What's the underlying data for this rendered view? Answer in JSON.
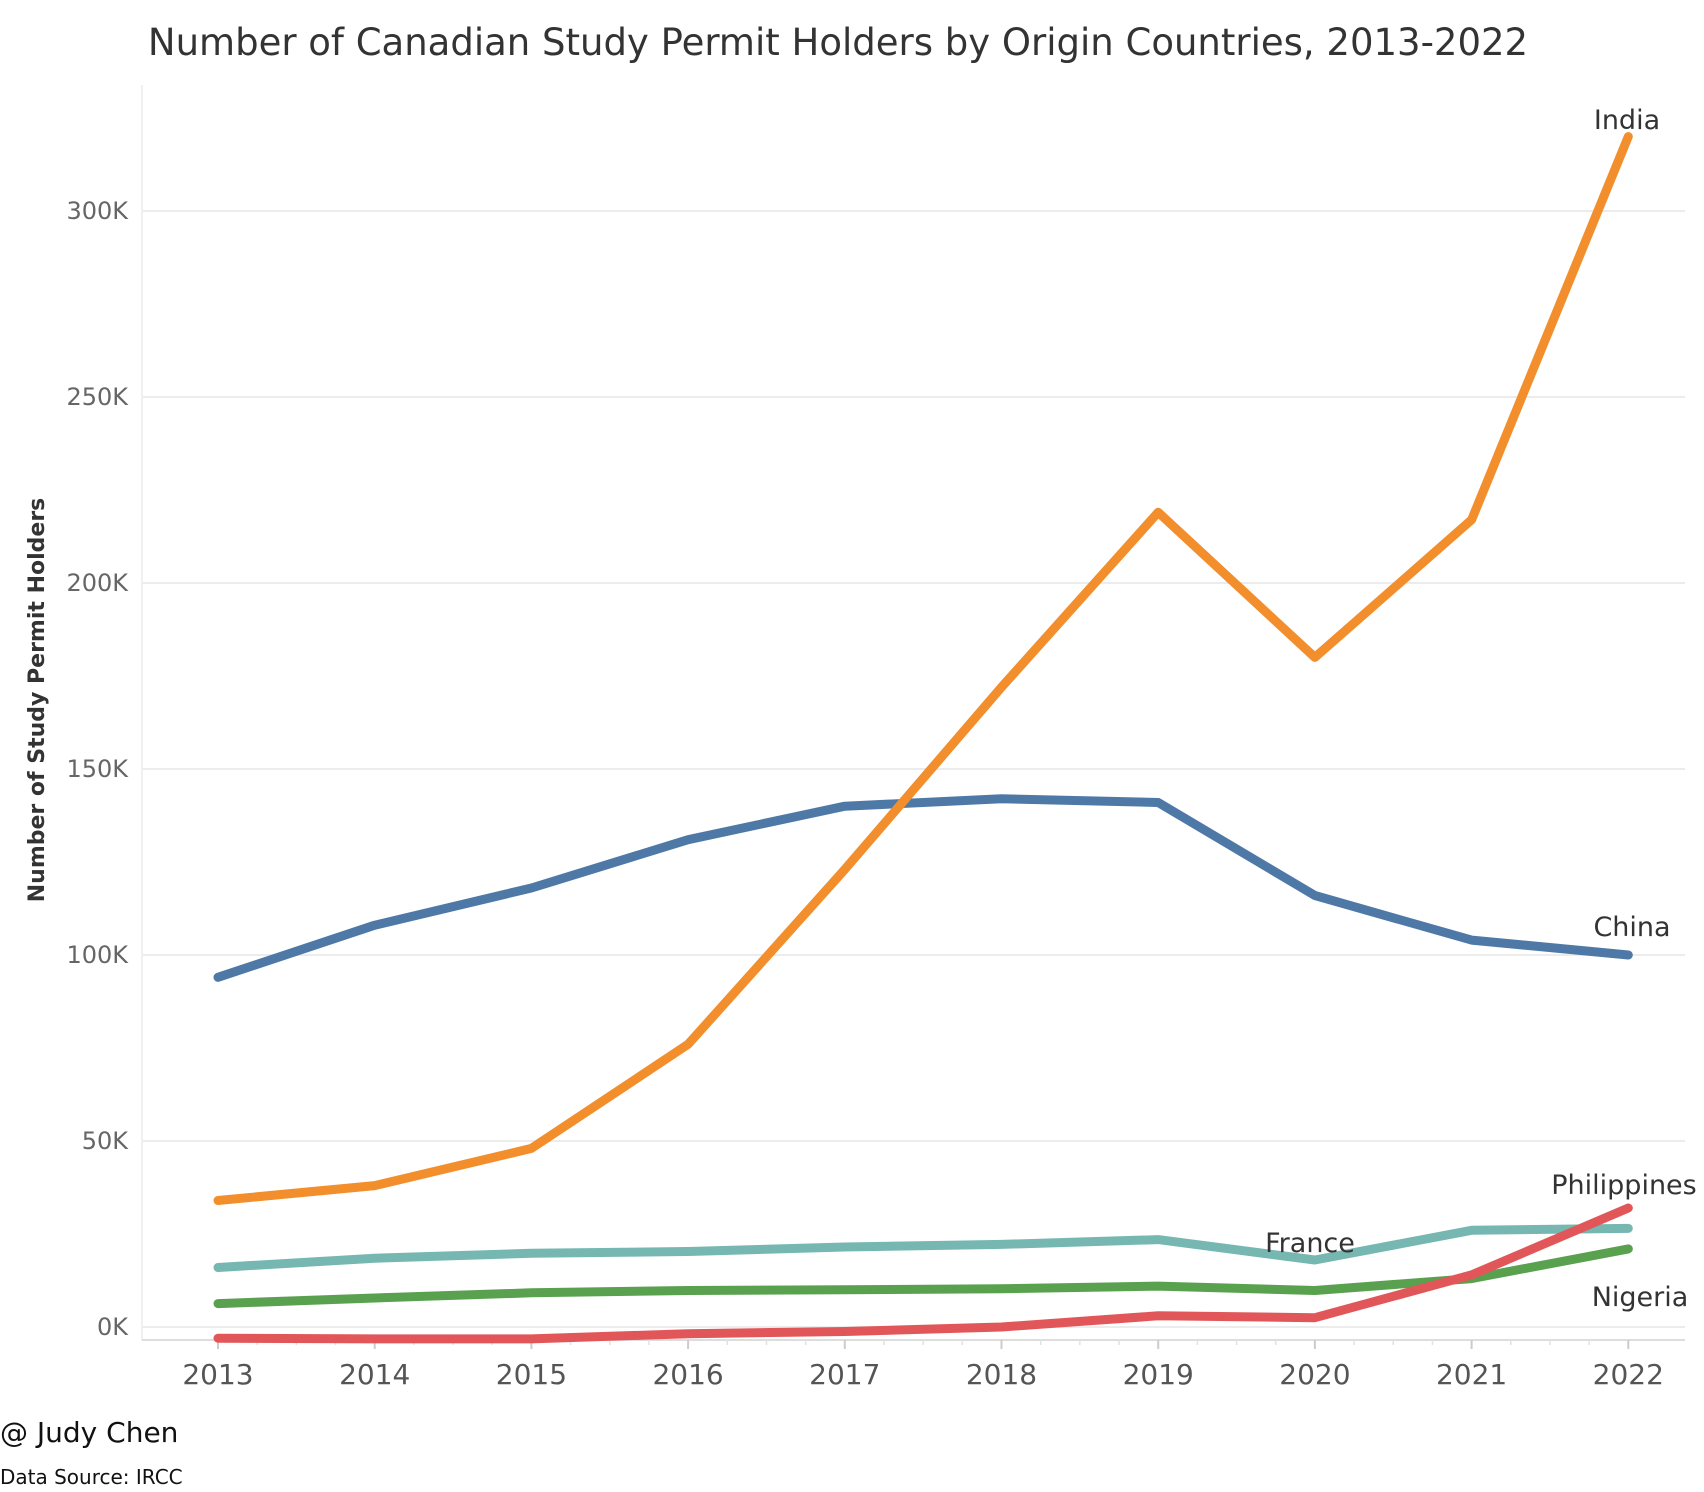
{
  "chart_data": {
    "type": "line",
    "title": "Number of Canadian Study Permit Holders by Origin Countries, 2013-2022",
    "xlabel": "",
    "ylabel": "Number of Study Permit Holders",
    "ylim": [
      0,
      330000
    ],
    "y_ticks": [
      0,
      50000,
      100000,
      150000,
      200000,
      250000,
      300000
    ],
    "y_tick_labels": [
      "0K",
      "50K",
      "100K",
      "150K",
      "200K",
      "250K",
      "300K"
    ],
    "x": [
      "2013",
      "2014",
      "2015",
      "2016",
      "2017",
      "2018",
      "2019",
      "2020",
      "2021",
      "2022"
    ],
    "grid": "horizontal",
    "legend": "none (direct labels)",
    "series": [
      {
        "name": "India",
        "color": "#f28e2b",
        "values": [
          34000,
          38000,
          48000,
          76000,
          123000,
          172000,
          219000,
          180000,
          217000,
          320000
        ]
      },
      {
        "name": "China",
        "color": "#4e79a7",
        "values": [
          94000,
          108000,
          118000,
          131000,
          140000,
          142000,
          141000,
          116000,
          104000,
          100000
        ]
      },
      {
        "name": "France",
        "color": "#76b7b2",
        "values": [
          16000,
          18500,
          19800,
          20300,
          21500,
          22200,
          23500,
          18000,
          26000,
          26500
        ]
      },
      {
        "name": "Philippines",
        "color": "#e15759",
        "values": [
          -3000,
          -3200,
          -3200,
          -1800,
          -1200,
          0,
          3000,
          2500,
          14000,
          32000
        ]
      },
      {
        "name": "Nigeria",
        "color": "#59a14f",
        "values": [
          6300,
          7800,
          9200,
          9800,
          10000,
          10300,
          11000,
          9800,
          13000,
          21000
        ]
      }
    ],
    "labels": [
      {
        "text": "India",
        "series": "India"
      },
      {
        "text": "China",
        "series": "China"
      },
      {
        "text": "France",
        "series": "France"
      },
      {
        "text": "Philippines",
        "series": "Philippines"
      },
      {
        "text": "Nigeria",
        "series": "Nigeria"
      }
    ]
  },
  "footer": {
    "credit": "@ Judy Chen",
    "source": "Data Source: IRCC"
  }
}
